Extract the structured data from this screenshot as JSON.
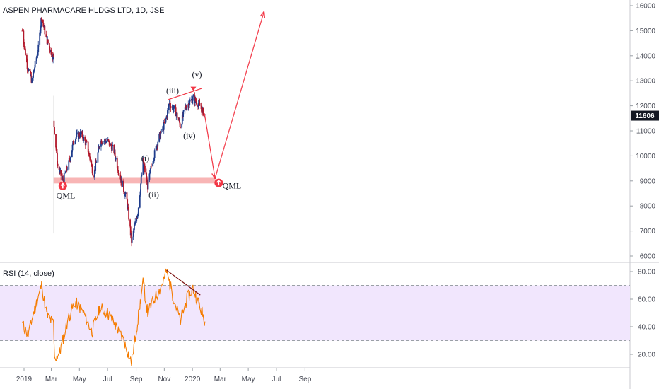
{
  "chart_data": [
    {
      "type": "candlestick",
      "title": "ASPEN PHARMACARE HLDGS LTD, 1D, JSE",
      "ylim": [
        6000,
        16500
      ],
      "y_ticks": [
        "16000",
        "15000",
        "14000",
        "13000",
        "12000",
        "11000",
        "10000",
        "9000",
        "8000",
        "7000",
        "6000"
      ],
      "y_tick_values": [
        16000,
        15000,
        14000,
        13000,
        12000,
        11000,
        10000,
        9000,
        8000,
        7000,
        6000
      ],
      "x_ticks": [
        "2019",
        "Mar",
        "May",
        "Jul",
        "Sep",
        "Nov",
        "2020",
        "Mar",
        "May",
        "Jul",
        "Sep"
      ],
      "last_price": "11606",
      "up_color": "#1e3c8c",
      "down_color": "#b2182b",
      "price_path": [
        {
          "date": "2018-12-28",
          "close": 15000
        },
        {
          "date": "2019-01-08",
          "close": 13600
        },
        {
          "date": "2019-01-18",
          "close": 13000
        },
        {
          "date": "2019-02-01",
          "close": 14300
        },
        {
          "date": "2019-02-08",
          "close": 15600
        },
        {
          "date": "2019-02-18",
          "close": 14700
        },
        {
          "date": "2019-02-28",
          "close": 14200
        },
        {
          "date": "2019-03-06",
          "close": 13900
        },
        {
          "date": "2019-03-07",
          "close": 11200
        },
        {
          "date": "2019-03-15",
          "close": 9600
        },
        {
          "date": "2019-03-26",
          "close": 9000
        },
        {
          "date": "2019-04-08",
          "close": 9700
        },
        {
          "date": "2019-04-20",
          "close": 10700
        },
        {
          "date": "2019-05-04",
          "close": 10900
        },
        {
          "date": "2019-05-18",
          "close": 10400
        },
        {
          "date": "2019-06-01",
          "close": 9200
        },
        {
          "date": "2019-06-15",
          "close": 10600
        },
        {
          "date": "2019-07-01",
          "close": 10600
        },
        {
          "date": "2019-07-15",
          "close": 10200
        },
        {
          "date": "2019-07-29",
          "close": 9100
        },
        {
          "date": "2019-08-12",
          "close": 8200
        },
        {
          "date": "2019-08-22",
          "close": 6600
        },
        {
          "date": "2019-09-05",
          "close": 7800
        },
        {
          "date": "2019-09-16",
          "close": 9800
        },
        {
          "date": "2019-09-26",
          "close": 8800
        },
        {
          "date": "2019-10-04",
          "close": 9600
        },
        {
          "date": "2019-10-18",
          "close": 10600
        },
        {
          "date": "2019-11-04",
          "close": 11400
        },
        {
          "date": "2019-11-12",
          "close": 12100
        },
        {
          "date": "2019-11-25",
          "close": 11800
        },
        {
          "date": "2019-12-06",
          "close": 11200
        },
        {
          "date": "2019-12-16",
          "close": 11900
        },
        {
          "date": "2020-01-02",
          "close": 12300
        },
        {
          "date": "2020-01-14",
          "close": 12100
        },
        {
          "date": "2020-01-28",
          "close": 11600
        }
      ]
    },
    {
      "type": "line",
      "title": "RSI (14, close)",
      "ylim": [
        10,
        85
      ],
      "y_ticks": [
        "80.00",
        "60.00",
        "40.00",
        "20.00"
      ],
      "y_tick_values": [
        80,
        60,
        40,
        20
      ],
      "band": [
        30,
        70
      ],
      "line_color": "#f57c00",
      "band_color": "#f1e6fd",
      "rsi_path": [
        {
          "date": "2018-12-28",
          "value": 42
        },
        {
          "date": "2019-01-10",
          "value": 34
        },
        {
          "date": "2019-01-20",
          "value": 48
        },
        {
          "date": "2019-02-08",
          "value": 70
        },
        {
          "date": "2019-02-20",
          "value": 48
        },
        {
          "date": "2019-03-06",
          "value": 42
        },
        {
          "date": "2019-03-08",
          "value": 16
        },
        {
          "date": "2019-03-20",
          "value": 22
        },
        {
          "date": "2019-04-06",
          "value": 45
        },
        {
          "date": "2019-04-22",
          "value": 58
        },
        {
          "date": "2019-05-10",
          "value": 50
        },
        {
          "date": "2019-05-28",
          "value": 36
        },
        {
          "date": "2019-06-14",
          "value": 54
        },
        {
          "date": "2019-07-01",
          "value": 50
        },
        {
          "date": "2019-07-20",
          "value": 40
        },
        {
          "date": "2019-08-05",
          "value": 30
        },
        {
          "date": "2019-08-22",
          "value": 14
        },
        {
          "date": "2019-09-06",
          "value": 48
        },
        {
          "date": "2019-09-16",
          "value": 72
        },
        {
          "date": "2019-09-26",
          "value": 50
        },
        {
          "date": "2019-10-10",
          "value": 60
        },
        {
          "date": "2019-10-24",
          "value": 68
        },
        {
          "date": "2019-11-06",
          "value": 80
        },
        {
          "date": "2019-11-20",
          "value": 62
        },
        {
          "date": "2019-12-06",
          "value": 44
        },
        {
          "date": "2019-12-20",
          "value": 60
        },
        {
          "date": "2020-01-02",
          "value": 68
        },
        {
          "date": "2020-01-16",
          "value": 56
        },
        {
          "date": "2020-01-28",
          "value": 44
        }
      ]
    }
  ],
  "annotations": {
    "wave_labels": [
      "(i)",
      "(ii)",
      "(iii)",
      "(iv)",
      "(v)"
    ],
    "qml_left": "QML",
    "qml_right": "QML",
    "support_zone": [
      8900,
      9150
    ],
    "arrow_color": "#f23645",
    "zone_color": "#f7a8a8"
  }
}
